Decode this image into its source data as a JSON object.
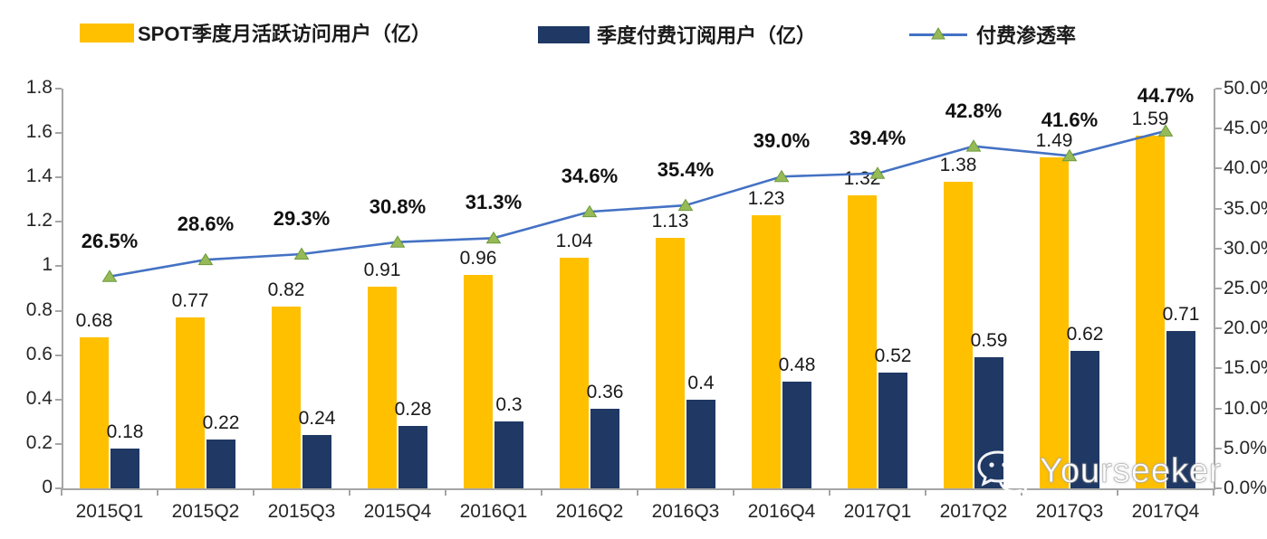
{
  "legend": [
    {
      "label": "SPOT季度月活跃访问用户（亿）",
      "type": "bar",
      "color": "#FFC000"
    },
    {
      "label": "季度付费订阅用户（亿）",
      "type": "bar",
      "color": "#1F3864"
    },
    {
      "label": "付费渗透率",
      "type": "line",
      "color": "#4472C4",
      "marker_color": "#95BA57"
    }
  ],
  "chart_data": {
    "type": "bar",
    "subtype": "grouped bars with secondary-axis line",
    "categories": [
      "2015Q1",
      "2015Q2",
      "2015Q3",
      "2015Q4",
      "2016Q1",
      "2016Q2",
      "2016Q3",
      "2016Q4",
      "2017Q1",
      "2017Q2",
      "2017Q3",
      "2017Q4"
    ],
    "series": [
      {
        "name": "SPOT季度月活跃访问用户（亿）",
        "type": "bar",
        "axis": "left",
        "color": "#FFC000",
        "values": [
          0.68,
          0.77,
          0.82,
          0.91,
          0.96,
          1.04,
          1.13,
          1.23,
          1.32,
          1.38,
          1.49,
          1.59
        ],
        "labels": [
          "0.68",
          "0.77",
          "0.82",
          "0.91",
          "0.96",
          "1.04",
          "1.13",
          "1.23",
          "1.32",
          "1.38",
          "1.49",
          "1.59"
        ]
      },
      {
        "name": "季度付费订阅用户（亿）",
        "type": "bar",
        "axis": "left",
        "color": "#1F3864",
        "values": [
          0.18,
          0.22,
          0.24,
          0.28,
          0.3,
          0.36,
          0.4,
          0.48,
          0.52,
          0.59,
          0.62,
          0.71
        ],
        "labels": [
          "0.18",
          "0.22",
          "0.24",
          "0.28",
          "0.3",
          "0.36",
          "0.4",
          "0.48",
          "0.52",
          "0.59",
          "0.62",
          "0.71"
        ]
      },
      {
        "name": "付费渗透率",
        "type": "line",
        "axis": "right",
        "color": "#4472C4",
        "marker": "triangle",
        "marker_fill": "#95BA57",
        "marker_stroke": "#6E9A3D",
        "values": [
          26.5,
          28.6,
          29.3,
          30.8,
          31.3,
          34.6,
          35.4,
          39.0,
          39.4,
          42.8,
          41.6,
          44.7
        ],
        "labels": [
          "26.5%",
          "28.6%",
          "29.3%",
          "30.8%",
          "31.3%",
          "34.6%",
          "35.4%",
          "39.0%",
          "39.4%",
          "42.8%",
          "41.6%",
          "44.7%"
        ]
      }
    ],
    "left_axis": {
      "min": 0,
      "max": 1.8,
      "step": 0.2,
      "ticks": [
        "0",
        "0.2",
        "0.4",
        "0.6",
        "0.8",
        "1",
        "1.2",
        "1.4",
        "1.6",
        "1.8"
      ]
    },
    "right_axis": {
      "min": 0,
      "max": 50,
      "step": 5,
      "ticks": [
        "0.0%",
        "5.0%",
        "10.0%",
        "15.0%",
        "20.0%",
        "25.0%",
        "30.0%",
        "35.0%",
        "40.0%",
        "45.0%",
        "50.0%"
      ]
    },
    "grid": false,
    "legend_position": "top"
  },
  "watermark": {
    "text": "Yourseeker"
  }
}
